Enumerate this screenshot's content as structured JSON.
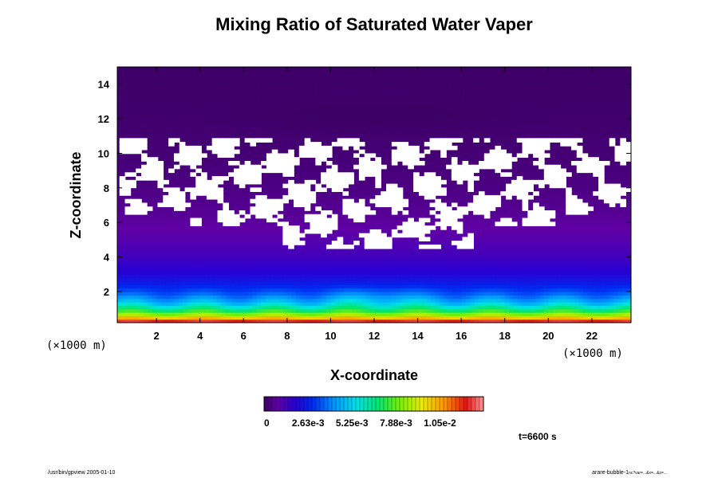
{
  "chart_data": {
    "type": "heatmap",
    "title": "Mixing Ratio of Saturated Water Vaper",
    "xlabel": "X-coordinate",
    "ylabel": "Z-coordinate",
    "x_unit": "(×1000 m)",
    "y_unit": "(×1000 m)",
    "xlim": [
      0.2,
      23.8
    ],
    "ylim": [
      0.2,
      15
    ],
    "x_ticks": [
      2,
      4,
      6,
      8,
      10,
      12,
      14,
      16,
      18,
      20,
      22
    ],
    "y_ticks": [
      2,
      4,
      6,
      8,
      10,
      12,
      14
    ],
    "colorbar": {
      "min": 0,
      "max": 0.0131,
      "tick_values": [
        0,
        0.00263,
        0.00525,
        0.00788,
        0.0105
      ],
      "tick_labels": [
        "0",
        "2.63e-3",
        "5.25e-3",
        "7.88e-3",
        "1.05e-2"
      ],
      "colormap": "rainbow-purple-to-pink"
    },
    "missing_region": {
      "x_range": [
        0.3,
        23.8
      ],
      "z_range": [
        4.5,
        10.7
      ]
    },
    "grid": false,
    "legend": "colorbar-bottom-center"
  },
  "annotations": {
    "time": "t=6600 s",
    "footer_left": "/usr/bin/gpview 2005-01-10",
    "footer_right_main": "arare-bubble-1",
    "footer_right_sub": "nc?var=...&x=...&z=..."
  }
}
